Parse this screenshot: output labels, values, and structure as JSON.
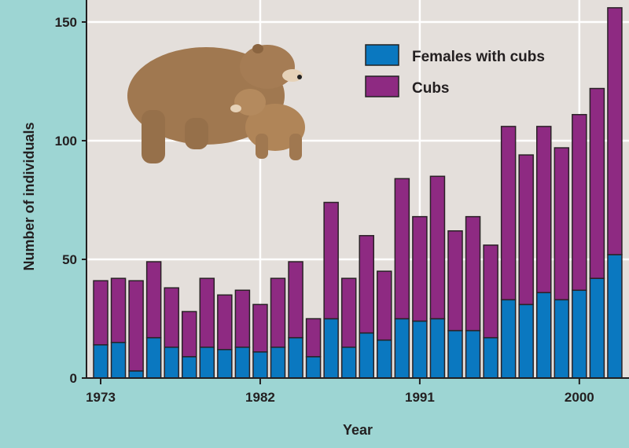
{
  "chart_data": {
    "type": "bar",
    "stacked": true,
    "title": "",
    "xlabel": "Year",
    "ylabel": "Number of individuals",
    "ylim": [
      0,
      155
    ],
    "yticks": [
      0,
      50,
      100,
      150
    ],
    "xtick_labels": [
      "1973",
      "1982",
      "1991",
      "2000"
    ],
    "grid": true,
    "legend_position": "top-right",
    "x": [
      1973,
      1974,
      1975,
      1976,
      1977,
      1978,
      1979,
      1980,
      1981,
      1982,
      1983,
      1984,
      1985,
      1986,
      1987,
      1988,
      1989,
      1990,
      1991,
      1992,
      1993,
      1994,
      1995,
      1996,
      1997,
      1998,
      1999,
      2000,
      2001,
      2002
    ],
    "series": [
      {
        "name": "Females with cubs",
        "color": "#0a78c0",
        "values": [
          14,
          15,
          3,
          17,
          13,
          9,
          13,
          12,
          13,
          11,
          13,
          17,
          9,
          25,
          13,
          19,
          16,
          25,
          24,
          25,
          20,
          20,
          17,
          33,
          31,
          36,
          33,
          37,
          42,
          52
        ]
      },
      {
        "name": "Cubs",
        "color": "#8e2a82",
        "values": [
          27,
          27,
          38,
          32,
          25,
          19,
          29,
          23,
          24,
          20,
          29,
          32,
          16,
          49,
          29,
          41,
          29,
          59,
          44,
          60,
          42,
          48,
          39,
          73,
          63,
          70,
          64,
          74,
          80,
          104
        ]
      }
    ]
  }
}
